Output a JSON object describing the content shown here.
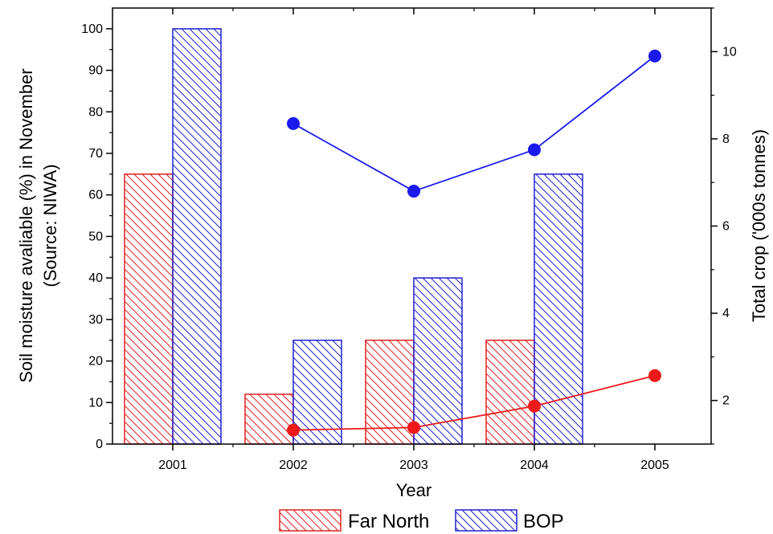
{
  "chart_data": {
    "type": "bar",
    "x_axis": {
      "label": "Year",
      "categories": [
        "2001",
        "2002",
        "2003",
        "2004",
        "2005"
      ]
    },
    "y_left": {
      "label_line1": "Soil moisture avaliable (%) in November",
      "label_line2": "(Source: NIWA)",
      "range": [
        0,
        105
      ],
      "ticks": [
        0,
        10,
        20,
        30,
        40,
        50,
        60,
        70,
        80,
        90,
        100
      ]
    },
    "y_right": {
      "label": "Total crop ('000s tonnes)",
      "range": [
        1,
        11
      ],
      "ticks": [
        2,
        4,
        6,
        8,
        10
      ]
    },
    "bar_series": [
      {
        "name": "Far North",
        "color": "#e02020",
        "values": [
          65,
          12,
          25,
          25,
          null
        ]
      },
      {
        "name": "BOP",
        "color": "#2020d0",
        "values": [
          100,
          25,
          40,
          65,
          null
        ]
      }
    ],
    "line_series": [
      {
        "name": "BOP",
        "color": "#1a1aee",
        "x": [
          "2002",
          "2003",
          "2004",
          "2005"
        ],
        "values": [
          8.35,
          6.8,
          7.75,
          9.9
        ]
      },
      {
        "name": "Far North",
        "color": "#ee1a1a",
        "x": [
          "2002",
          "2003",
          "2004",
          "2005"
        ],
        "values": [
          1.32,
          1.38,
          1.87,
          2.57
        ]
      }
    ],
    "legend": {
      "position": "bottom-center",
      "entries": [
        "Far North",
        "BOP"
      ]
    },
    "grid": false
  }
}
